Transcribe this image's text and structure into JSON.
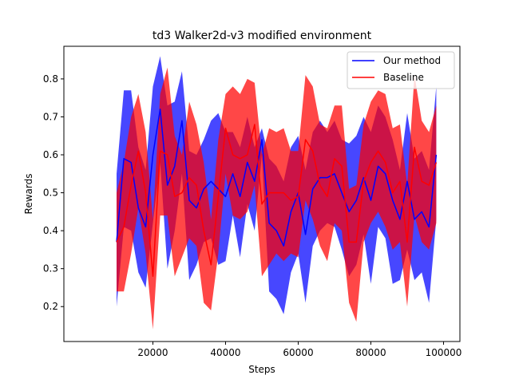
{
  "chart_data": {
    "type": "line",
    "title": "td3 Walker2d-v3 modified environment",
    "xlabel": "Steps",
    "ylabel": "Rewards",
    "xlim": [
      -4500,
      104500
    ],
    "ylim": [
      0.108,
      0.886
    ],
    "xticks": [
      20000,
      40000,
      60000,
      80000,
      100000
    ],
    "xtick_labels": [
      "20000",
      "40000",
      "60000",
      "80000",
      "100000"
    ],
    "yticks": [
      0.2,
      0.3,
      0.4,
      0.5,
      0.6,
      0.7,
      0.8
    ],
    "ytick_labels": [
      "0.2",
      "0.3",
      "0.4",
      "0.5",
      "0.6",
      "0.7",
      "0.8"
    ],
    "grid": false,
    "legend_position": "top-right",
    "x": [
      10000,
      12000,
      14000,
      16000,
      18000,
      20000,
      22000,
      24000,
      26000,
      28000,
      30000,
      32000,
      34000,
      36000,
      38000,
      40000,
      42000,
      44000,
      46000,
      48000,
      50000,
      52000,
      54000,
      56000,
      58000,
      60000,
      62000,
      64000,
      66000,
      68000,
      70000,
      72000,
      74000,
      76000,
      78000,
      80000,
      82000,
      84000,
      86000,
      88000,
      90000,
      92000,
      94000,
      96000,
      98000
    ],
    "series": [
      {
        "name": "Our method",
        "color": "#0000ff",
        "mean": [
          0.37,
          0.59,
          0.58,
          0.46,
          0.41,
          0.6,
          0.72,
          0.52,
          0.57,
          0.69,
          0.48,
          0.46,
          0.51,
          0.53,
          0.51,
          0.49,
          0.55,
          0.49,
          0.58,
          0.53,
          0.64,
          0.42,
          0.4,
          0.36,
          0.45,
          0.5,
          0.39,
          0.51,
          0.54,
          0.54,
          0.55,
          0.5,
          0.45,
          0.48,
          0.54,
          0.48,
          0.57,
          0.55,
          0.48,
          0.43,
          0.53,
          0.43,
          0.45,
          0.41,
          0.6
        ],
        "upper": [
          0.55,
          0.77,
          0.77,
          0.62,
          0.56,
          0.78,
          0.86,
          0.73,
          0.74,
          0.82,
          0.61,
          0.6,
          0.64,
          0.69,
          0.71,
          0.66,
          0.66,
          0.62,
          0.7,
          0.62,
          0.67,
          0.59,
          0.57,
          0.53,
          0.62,
          0.65,
          0.56,
          0.66,
          0.69,
          0.66,
          0.69,
          0.64,
          0.63,
          0.65,
          0.7,
          0.66,
          0.73,
          0.7,
          0.64,
          0.56,
          0.71,
          0.59,
          0.61,
          0.56,
          0.78
        ],
        "lower": [
          0.2,
          0.41,
          0.4,
          0.29,
          0.25,
          0.42,
          0.58,
          0.3,
          0.4,
          0.55,
          0.27,
          0.31,
          0.37,
          0.38,
          0.31,
          0.32,
          0.44,
          0.33,
          0.47,
          0.4,
          0.6,
          0.24,
          0.22,
          0.18,
          0.29,
          0.34,
          0.21,
          0.36,
          0.4,
          0.42,
          0.41,
          0.35,
          0.28,
          0.31,
          0.39,
          0.26,
          0.41,
          0.38,
          0.26,
          0.27,
          0.35,
          0.27,
          0.29,
          0.21,
          0.43
        ]
      },
      {
        "name": "Baseline",
        "color": "#ff0000",
        "mean": [
          0.37,
          0.41,
          0.52,
          0.61,
          0.5,
          0.28,
          0.61,
          0.6,
          0.49,
          0.5,
          0.54,
          0.52,
          0.4,
          0.31,
          0.49,
          0.67,
          0.6,
          0.59,
          0.6,
          0.68,
          0.47,
          0.5,
          0.5,
          0.5,
          0.48,
          0.49,
          0.64,
          0.61,
          0.52,
          0.49,
          0.59,
          0.57,
          0.37,
          0.37,
          0.53,
          0.58,
          0.61,
          0.58,
          0.5,
          0.53,
          0.37,
          0.62,
          0.53,
          0.52,
          0.58
        ],
        "upper": [
          0.5,
          0.58,
          0.7,
          0.76,
          0.66,
          0.43,
          0.76,
          0.83,
          0.65,
          0.6,
          0.74,
          0.68,
          0.58,
          0.43,
          0.64,
          0.76,
          0.78,
          0.76,
          0.8,
          0.79,
          0.6,
          0.67,
          0.66,
          0.67,
          0.61,
          0.61,
          0.81,
          0.78,
          0.68,
          0.67,
          0.73,
          0.73,
          0.51,
          0.52,
          0.68,
          0.74,
          0.77,
          0.76,
          0.67,
          0.68,
          0.52,
          0.81,
          0.69,
          0.66,
          0.73
        ],
        "lower": [
          0.24,
          0.24,
          0.34,
          0.46,
          0.34,
          0.14,
          0.44,
          0.44,
          0.28,
          0.33,
          0.38,
          0.36,
          0.21,
          0.19,
          0.34,
          0.55,
          0.44,
          0.43,
          0.45,
          0.52,
          0.28,
          0.31,
          0.34,
          0.32,
          0.34,
          0.33,
          0.48,
          0.43,
          0.36,
          0.32,
          0.42,
          0.4,
          0.21,
          0.16,
          0.37,
          0.42,
          0.45,
          0.41,
          0.35,
          0.37,
          0.2,
          0.44,
          0.37,
          0.35,
          0.42
        ]
      }
    ]
  }
}
